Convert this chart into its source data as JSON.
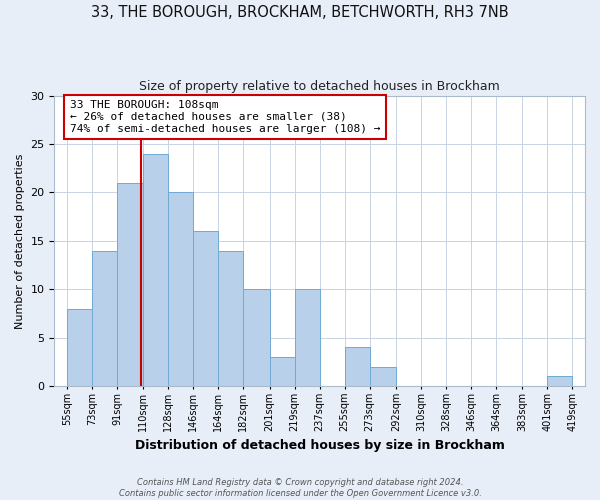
{
  "title": "33, THE BOROUGH, BROCKHAM, BETCHWORTH, RH3 7NB",
  "subtitle": "Size of property relative to detached houses in Brockham",
  "xlabel": "Distribution of detached houses by size in Brockham",
  "ylabel": "Number of detached properties",
  "bin_labels": [
    "55sqm",
    "73sqm",
    "91sqm",
    "110sqm",
    "128sqm",
    "146sqm",
    "164sqm",
    "182sqm",
    "201sqm",
    "219sqm",
    "237sqm",
    "255sqm",
    "273sqm",
    "292sqm",
    "310sqm",
    "328sqm",
    "346sqm",
    "364sqm",
    "383sqm",
    "401sqm",
    "419sqm"
  ],
  "bin_edges": [
    55,
    73,
    91,
    110,
    128,
    146,
    164,
    182,
    201,
    219,
    237,
    255,
    273,
    292,
    310,
    328,
    346,
    364,
    383,
    401,
    419
  ],
  "bar_heights": [
    8,
    14,
    21,
    24,
    20,
    16,
    14,
    10,
    3,
    10,
    0,
    4,
    2,
    0,
    0,
    0,
    0,
    0,
    0,
    1
  ],
  "bar_color": "#b8d0ea",
  "bar_edge_color": "#6eaad4",
  "vline_x": 108,
  "vline_color": "#cc0000",
  "annotation_text": "33 THE BOROUGH: 108sqm\n← 26% of detached houses are smaller (38)\n74% of semi-detached houses are larger (108) →",
  "annotation_box_facecolor": "#ffffff",
  "annotation_box_edgecolor": "#cc0000",
  "ylim": [
    0,
    30
  ],
  "yticks": [
    0,
    5,
    10,
    15,
    20,
    25,
    30
  ],
  "footer_line1": "Contains HM Land Registry data © Crown copyright and database right 2024.",
  "footer_line2": "Contains public sector information licensed under the Open Government Licence v3.0.",
  "bg_color": "#e8eef8",
  "plot_bg_color": "#ffffff",
  "grid_color": "#c8d4e4"
}
